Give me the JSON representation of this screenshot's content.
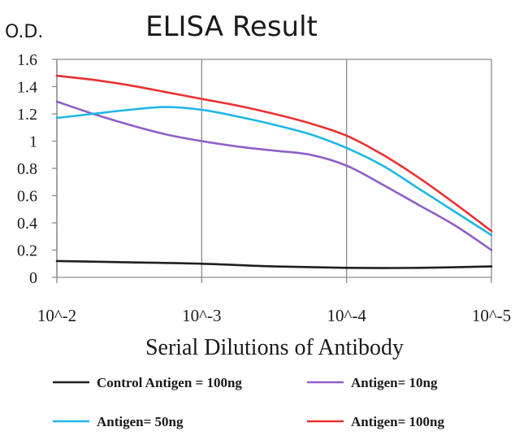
{
  "chart_data": {
    "type": "line",
    "title": "ELISA Result",
    "ylabel": "O.D.",
    "xlabel": "Serial Dilutions of Antibody",
    "categories": [
      "10^-2",
      "10^-3",
      "10^-4",
      "10^-5"
    ],
    "ylim": [
      0,
      1.6
    ],
    "yticks": [
      "0",
      "0.2",
      "0.4",
      "0.6",
      "0.8",
      "1",
      "1.2",
      "1.4",
      "1.6"
    ],
    "grid": "vertical",
    "legend_position": "bottom",
    "series": [
      {
        "name": "Control Antigen = 100ng",
        "color": "#1f1f1f",
        "x": [
          0,
          0.5,
          1,
          1.5,
          2,
          2.5,
          3
        ],
        "values": [
          0.12,
          0.11,
          0.1,
          0.08,
          0.07,
          0.07,
          0.08
        ]
      },
      {
        "name": "Antigen= 10ng",
        "color": "#8f5fc7",
        "x": [
          0,
          0.25,
          0.5,
          0.75,
          1,
          1.25,
          1.5,
          1.75,
          2,
          2.25,
          2.5,
          2.75,
          3
        ],
        "values": [
          1.29,
          1.2,
          1.12,
          1.05,
          1.0,
          0.96,
          0.93,
          0.9,
          0.82,
          0.68,
          0.53,
          0.38,
          0.2
        ]
      },
      {
        "name": "Antigen= 50ng",
        "color": "#1fb7e6",
        "x": [
          0,
          0.25,
          0.5,
          0.75,
          1,
          1.25,
          1.5,
          1.75,
          2,
          2.25,
          2.5,
          2.75,
          3
        ],
        "values": [
          1.17,
          1.2,
          1.23,
          1.25,
          1.23,
          1.18,
          1.12,
          1.05,
          0.95,
          0.82,
          0.65,
          0.48,
          0.31
        ]
      },
      {
        "name": "Antigen= 100ng",
        "color": "#e83232",
        "x": [
          0,
          0.25,
          0.5,
          0.75,
          1,
          1.25,
          1.5,
          1.75,
          2,
          2.25,
          2.5,
          2.75,
          3
        ],
        "values": [
          1.48,
          1.45,
          1.41,
          1.36,
          1.31,
          1.26,
          1.2,
          1.13,
          1.04,
          0.9,
          0.73,
          0.54,
          0.34
        ]
      }
    ]
  }
}
